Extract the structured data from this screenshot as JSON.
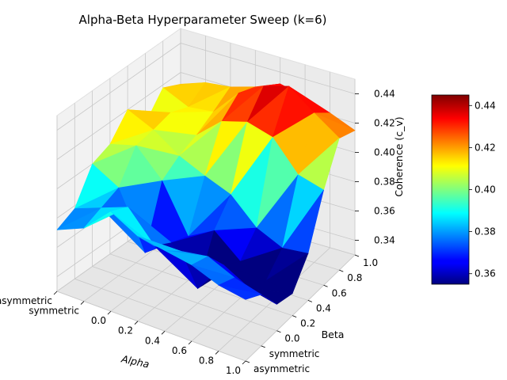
{
  "chart_data": {
    "type": "surface3d",
    "title": "Alpha-Beta Hyperparameter Sweep (k=6)",
    "xlabel": "Alpha",
    "ylabel": "Beta",
    "zlabel": "Coherence (c_v)",
    "x_ticks": [
      "asymmetric",
      "symmetric",
      "0.0",
      "0.2",
      "0.4",
      "0.6",
      "0.8",
      "1.0"
    ],
    "y_ticks": [
      "asymmetric",
      "symmetric",
      "0.0",
      "0.2",
      "0.4",
      "0.6",
      "0.8",
      "1.0"
    ],
    "z_ticks": [
      "0.34",
      "0.36",
      "0.38",
      "0.40",
      "0.42",
      "0.44"
    ],
    "zlim": [
      0.33,
      0.45
    ],
    "colormap": "jet",
    "colorbar": {
      "range": [
        0.355,
        0.445
      ],
      "ticks": [
        "0.36",
        "0.38",
        "0.40",
        "0.42",
        "0.44"
      ]
    },
    "grid": true,
    "values": [
      [
        0.372,
        0.378,
        0.4,
        0.405,
        0.42,
        0.402,
        0.418,
        0.412
      ],
      [
        0.38,
        0.385,
        0.39,
        0.41,
        0.412,
        0.415,
        0.41,
        0.418
      ],
      [
        0.398,
        0.392,
        0.352,
        0.392,
        0.4,
        0.405,
        0.412,
        0.42
      ],
      [
        0.388,
        0.372,
        0.365,
        0.36,
        0.392,
        0.42,
        0.43,
        0.425
      ],
      [
        0.385,
        0.375,
        0.34,
        0.37,
        0.385,
        0.425,
        0.44,
        0.432
      ],
      [
        0.382,
        0.378,
        0.362,
        0.355,
        0.368,
        0.42,
        0.445,
        0.428
      ],
      [
        0.375,
        0.37,
        0.352,
        0.348,
        0.36,
        0.4,
        0.432,
        0.422
      ],
      [
        0.372,
        0.365,
        0.348,
        0.345,
        0.362,
        0.395,
        0.42,
        0.415
      ]
    ]
  }
}
